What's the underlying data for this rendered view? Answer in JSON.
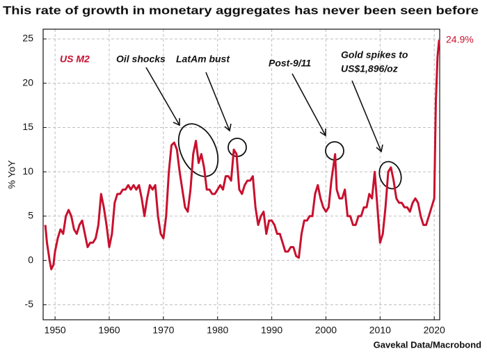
{
  "chart_data": {
    "type": "line",
    "title": "This rate of growth in monetary aggregates has never been seen before",
    "y_label": "% YoY",
    "source": "Gavekal Data/Macrobond",
    "annotations": [
      "US M2",
      "Oil shocks",
      "LatAm bust",
      "Post-9/11",
      "Gold spikes to",
      "US$1,896/oz",
      "24.9%"
    ],
    "xlim": [
      1947.8,
      2021.0
    ],
    "ylim": [
      -6.7,
      26.1
    ],
    "xticks": [
      1950,
      1960,
      1970,
      1980,
      1990,
      2000,
      2010,
      2020
    ],
    "yticks": [
      -5,
      0,
      5,
      10,
      15,
      20,
      25
    ],
    "grid": true,
    "series": [
      {
        "name": "US M2",
        "color": "#c8102e",
        "x": [
          1948.2,
          1948.5,
          1949,
          1949.3,
          1949.7,
          1950,
          1950.5,
          1951,
          1951.5,
          1952,
          1952.5,
          1953,
          1953.5,
          1954,
          1954.5,
          1955,
          1955.5,
          1956,
          1956.5,
          1957,
          1957.5,
          1958,
          1958.5,
          1959,
          1959.5,
          1960,
          1960.5,
          1961,
          1961.5,
          1962,
          1962.5,
          1963,
          1963.5,
          1964,
          1964.5,
          1965,
          1965.5,
          1966,
          1966.5,
          1967,
          1967.5,
          1968,
          1968.5,
          1969,
          1969.5,
          1970,
          1970.5,
          1971,
          1971.5,
          1972,
          1972.5,
          1973,
          1973.5,
          1974,
          1974.5,
          1975,
          1975.5,
          1976,
          1976.5,
          1977,
          1977.5,
          1978,
          1978.5,
          1979,
          1979.5,
          1980,
          1980.5,
          1981,
          1981.5,
          1982,
          1982.5,
          1983,
          1983.5,
          1984,
          1984.5,
          1985,
          1985.5,
          1986,
          1986.5,
          1987,
          1987.5,
          1988,
          1988.5,
          1989,
          1989.5,
          1990,
          1990.5,
          1991,
          1991.5,
          1992,
          1992.5,
          1993,
          1993.5,
          1994,
          1994.5,
          1995,
          1995.5,
          1996,
          1996.5,
          1997,
          1997.5,
          1998,
          1998.5,
          1999,
          1999.5,
          2000,
          2000.5,
          2001,
          2001.7,
          2002,
          2002.5,
          2003,
          2003.5,
          2004,
          2004.5,
          2005,
          2005.5,
          2006,
          2006.5,
          2007,
          2007.5,
          2008,
          2008.5,
          2009,
          2009.5,
          2010,
          2010.5,
          2011,
          2011.5,
          2012,
          2012.5,
          2013,
          2013.5,
          2014,
          2014.5,
          2015,
          2015.5,
          2016,
          2016.5,
          2017,
          2017.5,
          2018,
          2018.5,
          2019,
          2019.5,
          2020,
          2020.3,
          2020.6,
          2020.9
        ],
        "values": [
          4,
          2,
          0,
          -1,
          -0.5,
          1,
          2.5,
          3.5,
          3,
          5,
          5.7,
          5,
          3.5,
          3,
          4,
          4.5,
          3,
          1.5,
          2,
          2,
          2.5,
          4,
          7.5,
          6,
          4,
          1.5,
          3,
          6.5,
          7.5,
          7.5,
          8,
          8,
          8.5,
          8,
          8.5,
          8,
          8.5,
          7,
          5,
          7,
          8.5,
          8,
          8.5,
          5,
          3,
          2.5,
          5,
          10,
          13,
          13.3,
          12.5,
          10,
          8,
          6,
          5.5,
          8,
          12,
          13.5,
          11,
          12,
          10.5,
          8,
          8,
          7.5,
          7.5,
          8,
          8.5,
          8,
          9.5,
          9.5,
          9,
          12.5,
          12,
          8,
          7.5,
          8.5,
          9,
          9,
          9.5,
          6,
          4,
          5,
          5.5,
          3,
          4.5,
          4.5,
          4,
          3,
          3,
          2,
          1,
          1,
          1.5,
          1.5,
          0.5,
          0.3,
          3,
          4.5,
          4.5,
          5,
          5,
          7.5,
          8.5,
          7,
          6,
          5.5,
          6,
          9,
          12,
          8,
          7,
          7,
          8,
          5,
          5,
          4,
          4,
          5,
          5,
          6,
          6,
          7.5,
          7,
          10,
          6,
          2,
          3,
          6,
          10,
          10.5,
          9,
          7,
          6.5,
          6.5,
          6,
          6,
          5.5,
          6.5,
          7,
          6.5,
          5,
          4,
          4,
          5,
          6,
          7,
          18,
          23,
          24.9
        ]
      }
    ]
  }
}
